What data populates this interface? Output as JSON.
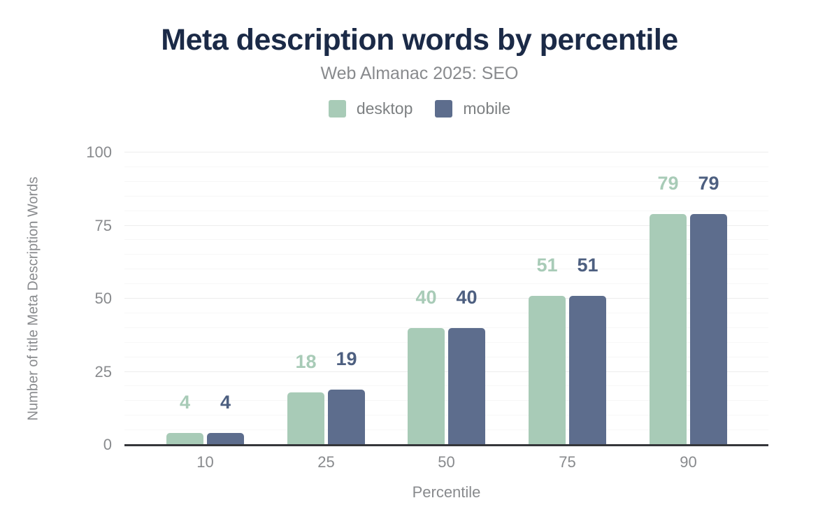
{
  "header": {
    "title": "Meta description words by percentile",
    "subtitle": "Web Almanac 2025: SEO"
  },
  "legend": {
    "items": [
      {
        "label": "desktop",
        "color": "#a8cbb7"
      },
      {
        "label": "mobile",
        "color": "#5d6d8d"
      }
    ]
  },
  "chart_data": {
    "type": "bar",
    "title": "Meta description words by percentile",
    "subtitle": "Web Almanac 2025: SEO",
    "categories": [
      "10",
      "25",
      "50",
      "75",
      "90"
    ],
    "series": [
      {
        "name": "desktop",
        "color": "#a8cbb7",
        "label_color": "#a8cbb7",
        "values": [
          4,
          18,
          40,
          51,
          79
        ]
      },
      {
        "name": "mobile",
        "color": "#5d6d8d",
        "label_color": "#4d5f80",
        "values": [
          4,
          19,
          40,
          51,
          79
        ]
      }
    ],
    "xlabel": "Percentile",
    "ylabel": "Number of title Meta Description Words",
    "ylim": [
      0,
      100
    ],
    "yticks": [
      0,
      25,
      50,
      75,
      100
    ],
    "grid": {
      "minor_step": 5,
      "major_step": 25,
      "on": true
    },
    "legend_position": "top",
    "value_labels_shown": true
  },
  "colors": {
    "title": "#1b2a47",
    "muted_text": "#888a8d",
    "legend_text": "#7d8082",
    "axis_line": "#35363a",
    "grid_minor": "#f7f7f7",
    "grid_major": "#ededed"
  }
}
